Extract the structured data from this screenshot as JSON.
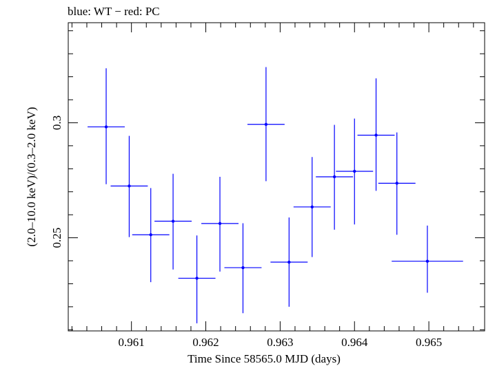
{
  "header": {
    "note": "blue: WT − red: PC"
  },
  "chart_data": {
    "type": "scatter",
    "title": "blue: WT − red: PC",
    "xlabel": "Time Since 58565.0 MJD (days)",
    "ylabel": "(2.0–10.0 keV)/(0.3–2.0 keV)",
    "xlim": [
      0.96015,
      0.96575
    ],
    "ylim": [
      0.2095,
      0.3435
    ],
    "x_ticks": [
      0.961,
      0.962,
      0.963,
      0.964,
      0.965
    ],
    "x_tick_labels": [
      "0.961",
      "0.962",
      "0.963",
      "0.964",
      "0.965"
    ],
    "y_ticks": [
      0.25,
      0.3
    ],
    "y_tick_labels": [
      "0.25",
      "0.3"
    ],
    "grid": false,
    "series": [
      {
        "color": "#0000ff",
        "points": [
          {
            "x": 0.96066,
            "y": 0.2982,
            "xerr": 0.00025,
            "ylo": 0.2733,
            "yhi": 0.3237
          },
          {
            "x": 0.96097,
            "y": 0.2725,
            "xerr": 0.00025,
            "ylo": 0.2503,
            "yhi": 0.2943
          },
          {
            "x": 0.96126,
            "y": 0.2513,
            "xerr": 0.00025,
            "ylo": 0.2307,
            "yhi": 0.2716
          },
          {
            "x": 0.96156,
            "y": 0.2572,
            "xerr": 0.00025,
            "ylo": 0.2362,
            "yhi": 0.2778
          },
          {
            "x": 0.96188,
            "y": 0.2324,
            "xerr": 0.00025,
            "ylo": 0.2128,
            "yhi": 0.251
          },
          {
            "x": 0.96219,
            "y": 0.2562,
            "xerr": 0.00025,
            "ylo": 0.2353,
            "yhi": 0.2765
          },
          {
            "x": 0.9625,
            "y": 0.237,
            "xerr": 0.00025,
            "ylo": 0.2172,
            "yhi": 0.2563
          },
          {
            "x": 0.96281,
            "y": 0.2993,
            "xerr": 0.00025,
            "ylo": 0.2746,
            "yhi": 0.3242
          },
          {
            "x": 0.96312,
            "y": 0.2394,
            "xerr": 0.00025,
            "ylo": 0.22,
            "yhi": 0.2588
          },
          {
            "x": 0.96343,
            "y": 0.2634,
            "xerr": 0.00025,
            "ylo": 0.2416,
            "yhi": 0.2851
          },
          {
            "x": 0.96373,
            "y": 0.2765,
            "xerr": 0.00025,
            "ylo": 0.2535,
            "yhi": 0.2991
          },
          {
            "x": 0.964,
            "y": 0.2789,
            "xerr": 0.00025,
            "ylo": 0.2558,
            "yhi": 0.3018
          },
          {
            "x": 0.96429,
            "y": 0.2946,
            "xerr": 0.00025,
            "ylo": 0.2704,
            "yhi": 0.3193
          },
          {
            "x": 0.96457,
            "y": 0.2737,
            "xerr": 0.00025,
            "ylo": 0.2513,
            "yhi": 0.2958
          },
          {
            "x": 0.96498,
            "y": 0.2398,
            "xerr": 0.00048,
            "ylo": 0.2261,
            "yhi": 0.2553
          }
        ]
      }
    ]
  }
}
